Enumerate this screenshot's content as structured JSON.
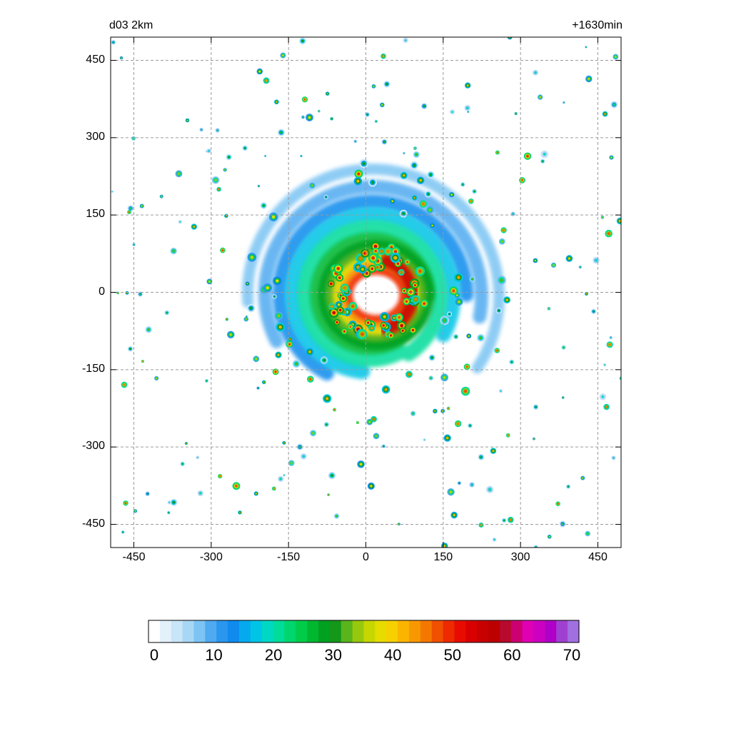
{
  "chart_data": {
    "type": "heatmap",
    "title_left": "d03 2km",
    "title_right": "+1630min",
    "xlabel": "",
    "ylabel": "",
    "xlim": [
      -495,
      495
    ],
    "ylim": [
      -495,
      495
    ],
    "x_ticks": [
      -450,
      -300,
      -150,
      0,
      150,
      300,
      450
    ],
    "y_ticks": [
      450,
      300,
      150,
      0,
      -150,
      -300,
      -450
    ],
    "x_tick_labels": [
      "-450",
      "-300",
      "-150",
      "0",
      "150",
      "300",
      "450"
    ],
    "y_tick_labels": [
      "450",
      "300",
      "150",
      "0",
      "-150",
      "-300",
      "-450"
    ],
    "grid": true,
    "colorbar": {
      "min": 0,
      "max": 70,
      "tick_values": [
        0,
        10,
        20,
        30,
        40,
        50,
        60,
        70
      ],
      "tick_labels": [
        "0",
        "10",
        "20",
        "30",
        "40",
        "50",
        "60",
        "70"
      ],
      "levels": [
        "#ffffff",
        "#e3f1fb",
        "#c9e5f8",
        "#a8d7f6",
        "#7cc4f3",
        "#4faaf0",
        "#2a96ee",
        "#0f8bed",
        "#05aaee",
        "#00c4e6",
        "#00d8c4",
        "#00dc9a",
        "#00d66e",
        "#00cc4a",
        "#00b830",
        "#00a020",
        "#14981a",
        "#5ab41c",
        "#96c80e",
        "#c6d600",
        "#e6dc00",
        "#f6d000",
        "#fbb400",
        "#f89800",
        "#f47800",
        "#f05000",
        "#ee2a00",
        "#e80c00",
        "#d80000",
        "#c80000",
        "#bc0000",
        "#b80a2c",
        "#cc0070",
        "#e000b4",
        "#cc00c0",
        "#b000c8",
        "#a040d0",
        "#a070e0"
      ]
    },
    "storm": {
      "center": [
        10,
        -5
      ],
      "eye_radius": 40,
      "eyewall_max_dbz": 55,
      "eyewall_peak_azimuth_deg": 0
    }
  }
}
